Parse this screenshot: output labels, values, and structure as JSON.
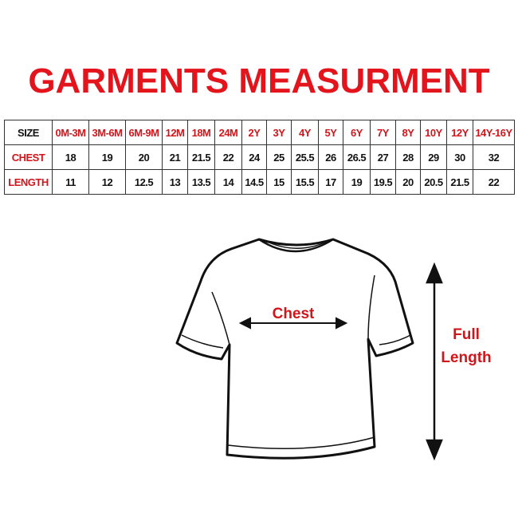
{
  "title": "GARMENTS MEASURMENT",
  "table": {
    "header": [
      "SIZE",
      "0M-3M",
      "3M-6M",
      "6M-9M",
      "12M",
      "18M",
      "24M",
      "2Y",
      "3Y",
      "4Y",
      "5Y",
      "6Y",
      "7Y",
      "8Y",
      "10Y",
      "12Y",
      "14Y-16Y"
    ],
    "rows": [
      {
        "label": "CHEST",
        "values": [
          "18",
          "19",
          "20",
          "21",
          "21.5",
          "22",
          "24",
          "25",
          "25.5",
          "26",
          "26.5",
          "27",
          "28",
          "29",
          "30",
          "32"
        ]
      },
      {
        "label": "LENGTH",
        "values": [
          "11",
          "12",
          "12.5",
          "13",
          "13.5",
          "14",
          "14.5",
          "15",
          "15.5",
          "17",
          "19",
          "19.5",
          "20",
          "20.5",
          "21.5",
          "22"
        ]
      }
    ]
  },
  "diagram": {
    "chest_label": "Chest",
    "length_label_1": "Full",
    "length_label_2": "Length",
    "accent": "#d2151b"
  }
}
